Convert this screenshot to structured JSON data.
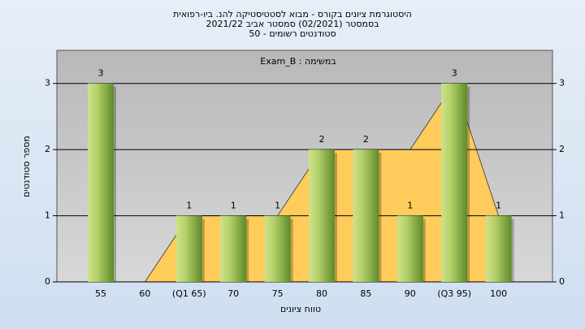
{
  "chart_data": {
    "type": "bar",
    "title": [
      "היסטוגרמת ציונים בקורס - מבוא לסטטיסטיקה להנ. ביו-רפואית",
      "בסמסטר  (02/2021)  סמסטר אביב 2021/22",
      "סטודנטים רשומים - 50"
    ],
    "annotation": "במשימה : Exam_B",
    "x_label": "טווח ציונים",
    "y_label": "מספר סטודנטים",
    "categories": [
      "55",
      "60",
      "(Q1 65)",
      "70",
      "75",
      "80",
      "85",
      "90",
      "(Q3 95)",
      "100"
    ],
    "values": [
      3,
      0,
      1,
      1,
      1,
      2,
      2,
      1,
      3,
      1
    ],
    "color": "#9cc14a",
    "overlay": {
      "type": "area",
      "color": "#ffcc5c",
      "values": [
        null,
        0,
        1,
        1,
        1,
        2,
        2,
        2,
        3,
        1
      ]
    },
    "ylim": [
      0,
      3.5
    ],
    "yticks": [
      0,
      1,
      2,
      3
    ],
    "grid": true
  }
}
